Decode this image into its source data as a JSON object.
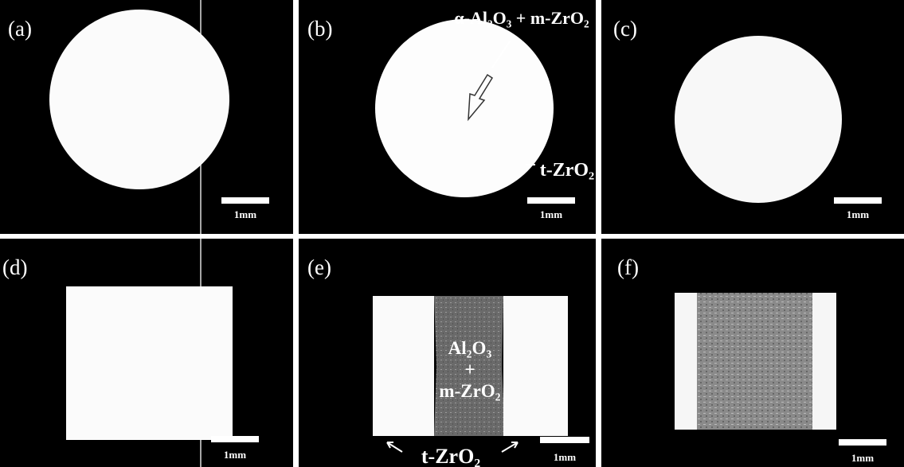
{
  "panels": [
    {
      "label": "(a)",
      "scale_bar": "1mm"
    },
    {
      "label": "(b)",
      "scale_bar": "1mm",
      "annotations": [
        "α-Al₂O₃ + m-ZrO₂",
        "t-ZrO₂"
      ]
    },
    {
      "label": "(c)",
      "scale_bar": "1mm"
    },
    {
      "label": "(d)",
      "scale_bar": "1mm"
    },
    {
      "label": "(e)",
      "scale_bar": "1mm",
      "annotations": [
        "Al₂O₃",
        "+",
        "m-ZrO₂",
        "t-ZrO₂"
      ]
    },
    {
      "label": "(f)",
      "scale_bar": "1mm"
    }
  ]
}
